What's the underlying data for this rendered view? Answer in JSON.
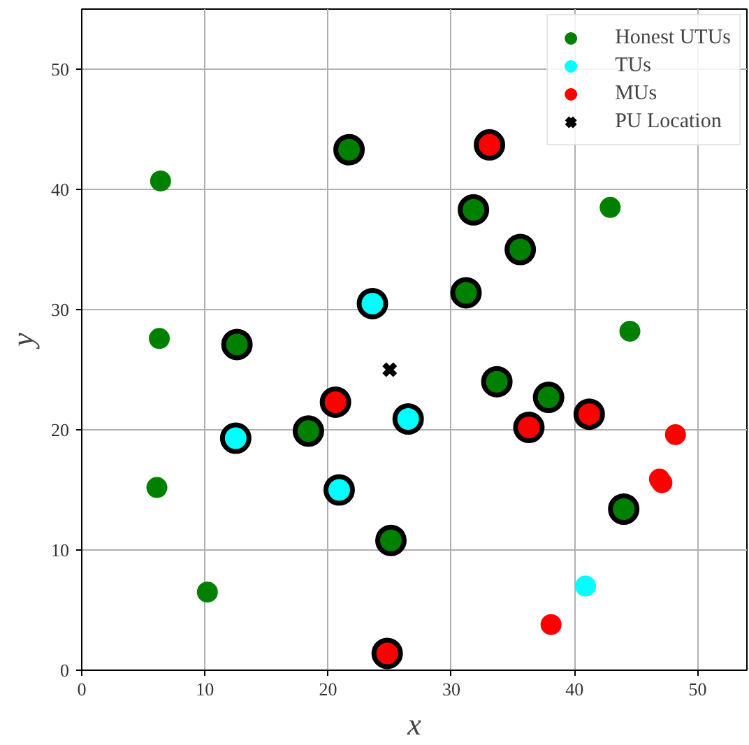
{
  "chart_data": {
    "type": "scatter",
    "xlabel": "x",
    "ylabel": "y",
    "xlim": [
      0,
      54
    ],
    "ylim": [
      0,
      55
    ],
    "xticks": [
      0,
      10,
      20,
      30,
      40,
      50
    ],
    "yticks": [
      0,
      10,
      20,
      30,
      40,
      50
    ],
    "grid": true,
    "legend": "top right",
    "marker": "circle",
    "series": [
      {
        "name": "Honest UTUs",
        "color": "#008000",
        "x": [
          6.4,
          6.3,
          6.1,
          10.2,
          42.9,
          44.5
        ],
        "values": [
          40.7,
          27.6,
          15.2,
          6.5,
          38.5,
          28.2
        ]
      },
      {
        "name": "TUs",
        "color": "#00ffff",
        "x": [
          40.9
        ],
        "values": [
          7.0
        ]
      },
      {
        "name": "MUs",
        "color": "#ff0000",
        "x": [
          48.2,
          46.9,
          47.1,
          38.1
        ],
        "values": [
          19.6,
          15.9,
          15.6,
          3.8
        ]
      },
      {
        "color": "#008000",
        "x": [
          21.7,
          12.6,
          18.4,
          25.1,
          31.8,
          35.6,
          31.2,
          33.7,
          37.9,
          44.0
        ],
        "values": [
          43.3,
          27.1,
          19.9,
          10.8,
          38.3,
          35.0,
          31.4,
          24.0,
          22.7,
          13.4
        ]
      },
      {
        "color": "#00ffff",
        "x": [
          23.6,
          12.5,
          26.5,
          20.9
        ],
        "values": [
          30.5,
          19.3,
          20.9,
          15.0
        ]
      },
      {
        "color": "#ff0000",
        "x": [
          33.1,
          20.6,
          36.3,
          41.2,
          24.8
        ],
        "values": [
          43.7,
          22.3,
          20.2,
          21.3,
          1.4
        ]
      },
      {
        "name": "PU Location",
        "color": "#000000",
        "marker": "cross",
        "x": [
          25
        ],
        "values": [
          25
        ]
      }
    ]
  }
}
